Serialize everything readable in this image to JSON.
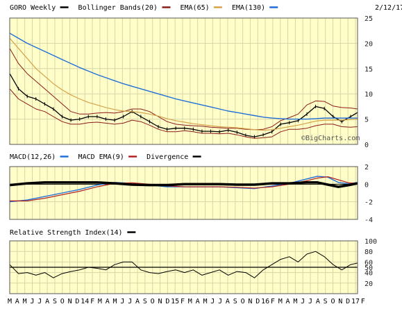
{
  "colors": {
    "panel_bg": "#fffec8",
    "grid": "#d8d6a8",
    "border": "#555555",
    "price": "#000000",
    "bollinger": "#8b1a1a",
    "ema65": "#d4a24a",
    "ema130": "#1f6fd8",
    "macd": "#1f6fd8",
    "macd_ema": "#b22222",
    "divergence": "#000000",
    "rsi": "#000000"
  },
  "chart_data": [
    {
      "id": "price",
      "type": "line",
      "title": "",
      "legend": [
        {
          "label": "GORO Weekly",
          "color": "#000000"
        },
        {
          "label": "Bollinger Bands(20)",
          "color": "#8b1a1a"
        },
        {
          "label": "EMA(65)",
          "color": "#d4a24a"
        },
        {
          "label": "EMA(130)",
          "color": "#1f6fd8"
        }
      ],
      "date": "2/12/17",
      "watermark": "©BigCharts.com",
      "ylim": [
        0,
        25
      ],
      "yticks": [
        0,
        5,
        10,
        15,
        20,
        25
      ],
      "x_range": [
        0,
        199
      ],
      "series": [
        {
          "role": "price",
          "x": [
            0,
            5,
            10,
            15,
            20,
            25,
            30,
            35,
            40,
            45,
            50,
            55,
            60,
            65,
            70,
            75,
            80,
            85,
            90,
            95,
            100,
            105,
            110,
            115,
            120,
            125,
            130,
            135,
            140,
            145,
            150,
            155,
            160,
            165,
            170,
            175,
            180,
            185,
            190,
            195,
            199
          ],
          "values": [
            14,
            11,
            9.5,
            9,
            8,
            7,
            5.5,
            4.8,
            5,
            5.5,
            5.5,
            5,
            4.8,
            5.5,
            6.5,
            5.5,
            4.5,
            3.5,
            3,
            3.2,
            3.2,
            3,
            2.6,
            2.6,
            2.5,
            2.8,
            2.4,
            1.8,
            1.5,
            1.9,
            2.5,
            4,
            4.3,
            4.7,
            6,
            7.5,
            7.1,
            5.5,
            4.5,
            5.5,
            6.3
          ]
        },
        {
          "role": "bollinger_upper",
          "x": [
            0,
            5,
            10,
            15,
            20,
            25,
            30,
            35,
            40,
            45,
            50,
            55,
            60,
            65,
            70,
            75,
            80,
            85,
            90,
            95,
            100,
            105,
            110,
            115,
            120,
            125,
            130,
            135,
            140,
            145,
            150,
            155,
            160,
            165,
            170,
            175,
            180,
            185,
            190,
            195,
            199
          ],
          "values": [
            19,
            16,
            14,
            12.5,
            11,
            9.5,
            8,
            6.5,
            6,
            6,
            6.2,
            6.3,
            6.2,
            6.5,
            7,
            7,
            6.5,
            5.5,
            4.5,
            4,
            3.8,
            3.7,
            3.6,
            3.4,
            3.3,
            3.2,
            3.2,
            3,
            2.9,
            3,
            3.5,
            4.7,
            5.3,
            6,
            7.8,
            8.6,
            8.5,
            7.6,
            7.3,
            7.2,
            7
          ]
        },
        {
          "role": "bollinger_lower",
          "x": [
            0,
            5,
            10,
            15,
            20,
            25,
            30,
            35,
            40,
            45,
            50,
            55,
            60,
            65,
            70,
            75,
            80,
            85,
            90,
            95,
            100,
            105,
            110,
            115,
            120,
            125,
            130,
            135,
            140,
            145,
            150,
            155,
            160,
            165,
            170,
            175,
            180,
            185,
            190,
            195,
            199
          ],
          "values": [
            11,
            9,
            8,
            7,
            6.5,
            5.5,
            4.5,
            4,
            4,
            4.3,
            4.4,
            4.2,
            4,
            4.2,
            4.8,
            4.5,
            3.8,
            3,
            2.5,
            2.5,
            2.7,
            2.5,
            2.2,
            2.2,
            2.1,
            2.2,
            1.9,
            1.5,
            1.2,
            1.3,
            1.5,
            2.5,
            3,
            3,
            3.2,
            3.7,
            4,
            4,
            3.5,
            3.4,
            3.5
          ]
        },
        {
          "role": "ema65",
          "x": [
            0,
            5,
            10,
            15,
            20,
            25,
            30,
            35,
            40,
            45,
            50,
            55,
            60,
            65,
            70,
            75,
            80,
            85,
            90,
            95,
            100,
            105,
            110,
            115,
            120,
            125,
            130,
            135,
            140,
            145,
            150,
            155,
            160,
            165,
            170,
            175,
            180,
            185,
            190,
            195,
            199
          ],
          "values": [
            21,
            19,
            17,
            15,
            13.5,
            12,
            10.8,
            9.8,
            9,
            8.3,
            7.8,
            7.3,
            6.9,
            6.6,
            6.5,
            6.3,
            6,
            5.6,
            5.1,
            4.7,
            4.4,
            4.1,
            3.9,
            3.7,
            3.5,
            3.4,
            3.3,
            3.1,
            2.9,
            2.8,
            2.9,
            3.2,
            3.5,
            3.8,
            4.2,
            4.6,
            4.8,
            4.8,
            4.8,
            4.9,
            5
          ]
        },
        {
          "role": "ema130",
          "x": [
            0,
            5,
            10,
            15,
            20,
            25,
            30,
            35,
            40,
            45,
            50,
            55,
            60,
            65,
            70,
            75,
            80,
            85,
            90,
            95,
            100,
            105,
            110,
            115,
            120,
            125,
            130,
            135,
            140,
            145,
            150,
            155,
            160,
            165,
            170,
            175,
            180,
            185,
            190,
            195,
            199
          ],
          "values": [
            22,
            21,
            20,
            19.2,
            18.4,
            17.6,
            16.8,
            16,
            15.2,
            14.5,
            13.8,
            13.2,
            12.6,
            12,
            11.5,
            11,
            10.5,
            10,
            9.5,
            9,
            8.6,
            8.2,
            7.8,
            7.4,
            7,
            6.6,
            6.3,
            6,
            5.7,
            5.4,
            5.2,
            5.1,
            5,
            5,
            5,
            5.1,
            5.2,
            5.2,
            5.2,
            5.2,
            5.2
          ]
        }
      ]
    },
    {
      "id": "macd",
      "type": "line",
      "legend": [
        {
          "label": "MACD(12,26)",
          "color": "#1f6fd8"
        },
        {
          "label": "MACD EMA(9)",
          "color": "#b22222"
        },
        {
          "label": "Divergence",
          "color": "#000000"
        }
      ],
      "ylim": [
        -4,
        2
      ],
      "yticks": [
        2,
        0,
        -2,
        -4
      ],
      "x_range": [
        0,
        199
      ],
      "series": [
        {
          "role": "macd",
          "x": [
            0,
            10,
            20,
            30,
            40,
            50,
            60,
            70,
            80,
            90,
            100,
            110,
            120,
            130,
            140,
            150,
            160,
            170,
            176,
            182,
            188,
            194,
            199
          ],
          "values": [
            -2,
            -1.8,
            -1.4,
            -1,
            -0.6,
            -0.1,
            0.2,
            0.1,
            -0.1,
            -0.3,
            -0.3,
            -0.3,
            -0.3,
            -0.4,
            -0.5,
            -0.2,
            0.1,
            0.6,
            0.9,
            0.8,
            0.2,
            0.05,
            0.2
          ]
        },
        {
          "role": "macd_ema",
          "x": [
            0,
            10,
            20,
            30,
            40,
            50,
            60,
            70,
            80,
            90,
            100,
            110,
            120,
            130,
            140,
            150,
            160,
            170,
            176,
            182,
            188,
            194,
            199
          ],
          "values": [
            -1.9,
            -1.9,
            -1.6,
            -1.2,
            -0.8,
            -0.3,
            0.1,
            0.15,
            0,
            -0.2,
            -0.3,
            -0.3,
            -0.3,
            -0.35,
            -0.45,
            -0.3,
            0,
            0.4,
            0.7,
            0.85,
            0.5,
            0.15,
            0.1
          ]
        },
        {
          "role": "divergence",
          "x": [
            0,
            10,
            20,
            30,
            40,
            50,
            60,
            70,
            80,
            90,
            100,
            110,
            120,
            130,
            140,
            150,
            160,
            170,
            176,
            182,
            188,
            194,
            199
          ],
          "values": [
            -0.1,
            0.1,
            0.2,
            0.2,
            0.2,
            0.2,
            0.1,
            -0.05,
            -0.1,
            -0.1,
            0,
            0,
            0,
            -0.05,
            -0.05,
            0.1,
            0.1,
            0.2,
            0.2,
            -0.05,
            -0.3,
            -0.1,
            0.1
          ]
        }
      ]
    },
    {
      "id": "rsi",
      "type": "line",
      "legend": [
        {
          "label": "Relative Strength Index(14)",
          "color": "#000000"
        }
      ],
      "ylim": [
        0,
        100
      ],
      "yticks": [
        100,
        80,
        60,
        50,
        40,
        20
      ],
      "reference_line": 50,
      "x_range": [
        0,
        199
      ],
      "series": [
        {
          "role": "rsi",
          "x": [
            0,
            5,
            10,
            15,
            20,
            25,
            30,
            35,
            40,
            45,
            50,
            55,
            60,
            65,
            70,
            75,
            80,
            85,
            90,
            95,
            100,
            105,
            110,
            115,
            120,
            125,
            130,
            135,
            140,
            145,
            150,
            155,
            160,
            165,
            170,
            175,
            180,
            185,
            190,
            195,
            199
          ],
          "values": [
            55,
            38,
            40,
            35,
            40,
            30,
            38,
            42,
            45,
            50,
            48,
            45,
            55,
            60,
            60,
            45,
            40,
            38,
            42,
            45,
            40,
            45,
            35,
            40,
            45,
            35,
            42,
            40,
            30,
            45,
            55,
            65,
            70,
            60,
            75,
            80,
            70,
            55,
            45,
            55,
            58
          ]
        }
      ]
    }
  ],
  "x_axis": {
    "labels": [
      {
        "x": 0,
        "text": "M"
      },
      {
        "x": 4.3,
        "text": "A"
      },
      {
        "x": 8.6,
        "text": "M"
      },
      {
        "x": 12.9,
        "text": "J"
      },
      {
        "x": 17.2,
        "text": "J"
      },
      {
        "x": 21.5,
        "text": "A"
      },
      {
        "x": 25.8,
        "text": "S"
      },
      {
        "x": 30.1,
        "text": "O"
      },
      {
        "x": 34.4,
        "text": "N"
      },
      {
        "x": 38.7,
        "text": "D"
      },
      {
        "x": 43,
        "text": "14"
      },
      {
        "x": 47.3,
        "text": "F"
      },
      {
        "x": 51.6,
        "text": "M"
      },
      {
        "x": 55.9,
        "text": "A"
      },
      {
        "x": 60.2,
        "text": "M"
      },
      {
        "x": 64.5,
        "text": "J"
      },
      {
        "x": 68.8,
        "text": "J"
      },
      {
        "x": 73.1,
        "text": "A"
      },
      {
        "x": 77.4,
        "text": "S"
      },
      {
        "x": 81.7,
        "text": "O"
      },
      {
        "x": 86,
        "text": "N"
      },
      {
        "x": 90.3,
        "text": "D"
      },
      {
        "x": 94.6,
        "text": "15"
      },
      {
        "x": 98.9,
        "text": "F"
      },
      {
        "x": 103.2,
        "text": "M"
      },
      {
        "x": 107.5,
        "text": "A"
      },
      {
        "x": 111.8,
        "text": "M"
      },
      {
        "x": 116.1,
        "text": "J"
      },
      {
        "x": 120.4,
        "text": "J"
      },
      {
        "x": 124.7,
        "text": "A"
      },
      {
        "x": 129,
        "text": "S"
      },
      {
        "x": 133.3,
        "text": "O"
      },
      {
        "x": 137.6,
        "text": "N"
      },
      {
        "x": 141.9,
        "text": "D"
      },
      {
        "x": 146.2,
        "text": "16"
      },
      {
        "x": 150.5,
        "text": "F"
      },
      {
        "x": 154.8,
        "text": "M"
      },
      {
        "x": 159.1,
        "text": "A"
      },
      {
        "x": 163.4,
        "text": "M"
      },
      {
        "x": 167.7,
        "text": "J"
      },
      {
        "x": 172,
        "text": "J"
      },
      {
        "x": 176.3,
        "text": "A"
      },
      {
        "x": 180.6,
        "text": "S"
      },
      {
        "x": 184.9,
        "text": "O"
      },
      {
        "x": 189.2,
        "text": "N"
      },
      {
        "x": 193.5,
        "text": "D"
      },
      {
        "x": 197.8,
        "text": "17"
      },
      {
        "x": 202.1,
        "text": "F"
      }
    ]
  }
}
